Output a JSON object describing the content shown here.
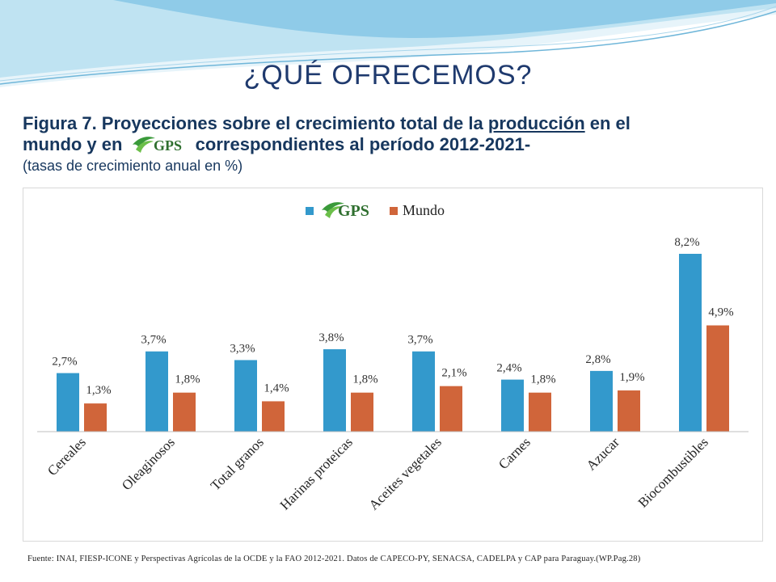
{
  "slide": {
    "title": "¿QUÉ OFRECEMOS?",
    "caption_line1_prefix": "Figura 7. Proyecciones sobre el crecimiento total de la ",
    "caption_line1_underlined": "producción",
    "caption_line1_suffix": " en el",
    "caption_line2_prefix": "mundo y en ",
    "caption_line2_suffix": " correspondientes al período 2012-2021-",
    "caption_sub": "(tasas de crecimiento anual en %)",
    "logo_text": "GPS",
    "source": "Fuente: INAI, FIESP-ICONE y Perspectivas Agrícolas de la OCDE y la FAO 2012-2021. Datos de CAPECO-PY, SENACSA, CADELPA y CAP para Paraguay.(WP.Pag.28)"
  },
  "colors": {
    "title": "#1f3a6e",
    "caption": "#17375e",
    "gps_series": "#3399cc",
    "mundo_series": "#d0653a",
    "logo_green": "#3a9a3a",
    "wave_light": "#cfe9f5",
    "wave_mid": "#8fcbe8"
  },
  "chart_data": {
    "type": "bar",
    "categories": [
      "Cereales",
      "Oleaginosos",
      "Total granos",
      "Harinas proteicas",
      "Aceites vegetales",
      "Carnes",
      "Azucar",
      "Biocombustibles"
    ],
    "series": [
      {
        "name": "GPS",
        "values": [
          2.7,
          3.7,
          3.3,
          3.8,
          3.7,
          2.4,
          2.8,
          8.2
        ],
        "labels": [
          "2,7%",
          "3,7%",
          "3,3%",
          "3,8%",
          "3,7%",
          "2,4%",
          "2,8%",
          "8,2%"
        ]
      },
      {
        "name": "Mundo",
        "values": [
          1.3,
          1.8,
          1.4,
          1.8,
          2.1,
          1.8,
          1.9,
          4.9
        ],
        "labels": [
          "1,3%",
          "1,8%",
          "1,4%",
          "1,8%",
          "2,1%",
          "1,8%",
          "1,9%",
          "4,9%"
        ]
      }
    ],
    "ylim": [
      0,
      8.2
    ],
    "grid": false,
    "legend": "top-center"
  }
}
